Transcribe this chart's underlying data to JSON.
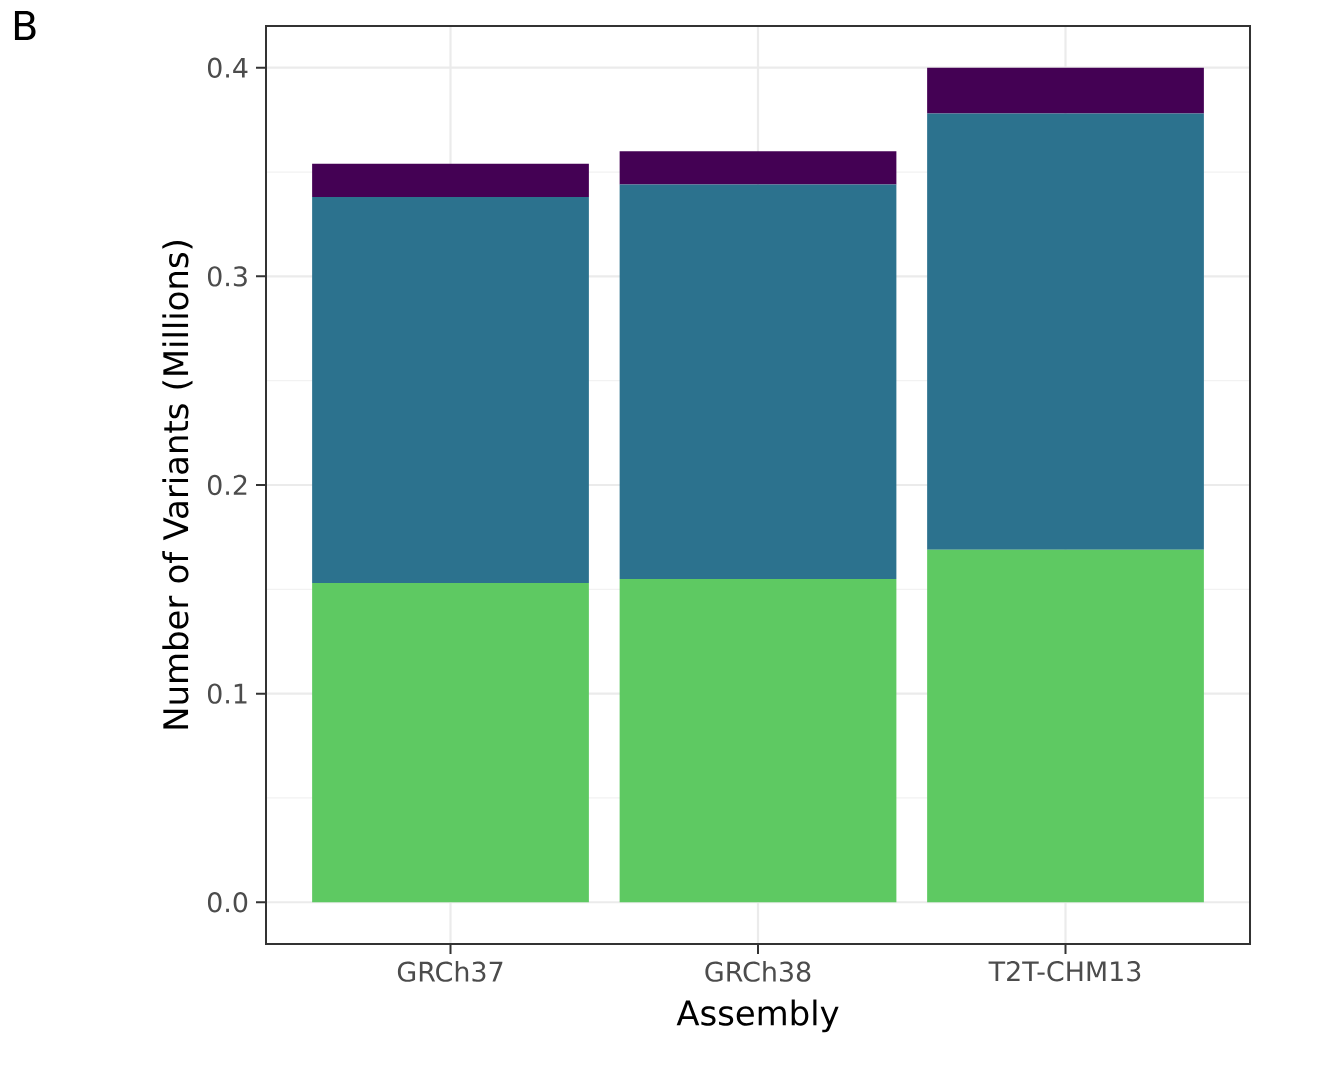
{
  "chart_data": {
    "type": "bar",
    "stacked": true,
    "xlabel": "Assembly",
    "ylabel": "Number of Variants (Millions)",
    "categories": [
      "GRCh37",
      "GRCh38",
      "T2T-CHM13"
    ],
    "series": [
      {
        "color": "#5ec962",
        "values": [
          0.153,
          0.155,
          0.169
        ]
      },
      {
        "color": "#2c728e",
        "values": [
          0.185,
          0.189,
          0.209
        ]
      },
      {
        "color": "#440154",
        "values": [
          0.016,
          0.016,
          0.022
        ]
      }
    ],
    "ylim": [
      -0.02,
      0.42
    ],
    "yticks": [
      {
        "value": 0,
        "label": "0.0"
      },
      0.1,
      0.2,
      0.3,
      0.4
    ],
    "grid": true,
    "annotations": [
      "B"
    ]
  }
}
